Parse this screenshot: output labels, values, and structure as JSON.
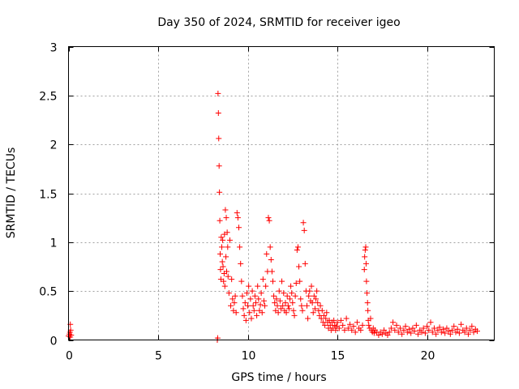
{
  "chart_data": {
    "type": "scatter",
    "title": "Day 350 of 2024, SRMTID for receiver igeo",
    "xlabel": "GPS time / hours",
    "ylabel": "SRMTID / TECUs",
    "xlim": [
      0,
      23.75
    ],
    "ylim": [
      0,
      3
    ],
    "grid": true,
    "x_ticks": [
      0,
      5,
      10,
      15,
      20
    ],
    "y_ticks": [
      0,
      0.5,
      1,
      1.5,
      2,
      2.5,
      3
    ],
    "x_tick_labels": [
      "0",
      "5",
      "10",
      "15",
      "20"
    ],
    "y_tick_labels": [
      "0",
      "0.5",
      "1",
      "1.5",
      "2",
      "2.5",
      "3"
    ],
    "marker": "+",
    "color": "#ff0000",
    "series": [
      {
        "name": "igeo",
        "x": [
          0.0,
          0.05,
          0.1,
          0.12,
          0.15,
          0.1,
          0.08,
          8.3,
          8.32,
          8.34,
          8.36,
          8.38,
          8.4,
          8.42,
          8.44,
          8.46,
          8.48,
          8.5,
          8.52,
          8.55,
          8.58,
          8.6,
          8.62,
          8.65,
          8.68,
          8.7,
          8.72,
          8.75,
          8.78,
          8.8,
          8.82,
          8.85,
          8.88,
          8.9,
          8.95,
          9.0,
          9.05,
          9.1,
          9.15,
          9.2,
          9.25,
          9.3,
          9.35,
          9.4,
          9.45,
          9.5,
          9.55,
          9.6,
          9.65,
          9.7,
          9.75,
          9.8,
          9.85,
          9.9,
          9.95,
          10.0,
          10.05,
          10.1,
          10.15,
          10.2,
          10.25,
          10.3,
          10.35,
          10.4,
          10.45,
          10.5,
          10.55,
          10.6,
          10.65,
          10.7,
          10.75,
          10.8,
          10.85,
          10.9,
          10.95,
          11.0,
          11.05,
          11.1,
          11.15,
          11.2,
          11.25,
          11.3,
          11.35,
          11.4,
          11.45,
          11.5,
          11.55,
          11.6,
          11.65,
          11.7,
          11.75,
          11.8,
          11.85,
          11.9,
          11.95,
          12.0,
          12.05,
          12.1,
          12.15,
          12.2,
          12.25,
          12.3,
          12.35,
          12.4,
          12.45,
          12.5,
          12.55,
          12.6,
          12.65,
          12.7,
          12.75,
          12.8,
          12.85,
          12.9,
          12.95,
          13.0,
          13.05,
          13.1,
          13.15,
          13.2,
          13.25,
          13.3,
          13.35,
          13.4,
          13.45,
          13.5,
          13.55,
          13.6,
          13.65,
          13.7,
          13.75,
          13.8,
          13.85,
          13.9,
          13.95,
          14.0,
          14.05,
          14.1,
          14.15,
          14.2,
          14.25,
          14.3,
          14.35,
          14.4,
          14.45,
          14.5,
          14.55,
          14.6,
          14.65,
          14.7,
          14.75,
          14.8,
          14.85,
          14.9,
          14.95,
          15.0,
          15.1,
          15.2,
          15.3,
          15.4,
          15.5,
          15.6,
          15.7,
          15.8,
          15.9,
          16.0,
          16.1,
          16.2,
          16.3,
          16.4,
          16.5,
          16.52,
          16.55,
          16.58,
          16.6,
          16.62,
          16.65,
          16.68,
          16.7,
          16.72,
          16.75,
          16.8,
          16.85,
          16.9,
          16.95,
          17.0,
          17.05,
          17.1,
          17.2,
          17.3,
          17.4,
          17.5,
          17.6,
          17.7,
          17.8,
          17.9,
          18.0,
          18.1,
          18.2,
          18.3,
          18.4,
          18.5,
          18.6,
          18.7,
          18.8,
          18.9,
          19.0,
          19.1,
          19.2,
          19.3,
          19.4,
          19.5,
          19.6,
          19.7,
          19.8,
          19.9,
          20.0,
          20.1,
          20.2,
          20.3,
          20.4,
          20.5,
          20.6,
          20.7,
          20.8,
          20.9,
          21.0,
          21.1,
          21.2,
          21.3,
          21.4,
          21.5,
          21.6,
          21.7,
          21.8,
          21.9,
          22.0,
          22.1,
          22.2,
          22.3,
          22.4,
          22.5,
          22.6,
          22.7,
          22.8
        ],
        "y": [
          0.04,
          0.06,
          0.16,
          0.1,
          0.05,
          0.03,
          0.08,
          0.0,
          0.02,
          2.52,
          2.32,
          2.06,
          1.78,
          1.51,
          1.22,
          0.88,
          0.72,
          0.62,
          1.05,
          0.95,
          0.8,
          1.02,
          0.75,
          0.6,
          0.68,
          1.08,
          0.55,
          1.33,
          0.85,
          1.25,
          0.7,
          1.1,
          0.95,
          0.65,
          0.48,
          1.02,
          0.35,
          0.62,
          0.42,
          0.3,
          0.38,
          0.45,
          0.28,
          1.3,
          1.25,
          1.15,
          0.95,
          0.78,
          0.6,
          0.45,
          0.32,
          0.25,
          0.38,
          0.2,
          0.48,
          0.35,
          0.55,
          0.28,
          0.42,
          0.22,
          0.5,
          0.35,
          0.3,
          0.45,
          0.38,
          0.25,
          0.55,
          0.42,
          0.3,
          0.36,
          0.48,
          0.28,
          0.62,
          0.4,
          0.35,
          0.55,
          0.88,
          0.7,
          1.25,
          1.22,
          0.95,
          0.82,
          0.7,
          0.6,
          0.45,
          0.38,
          0.3,
          0.42,
          0.35,
          0.28,
          0.5,
          0.4,
          0.32,
          0.6,
          0.35,
          0.48,
          0.3,
          0.38,
          0.28,
          0.45,
          0.35,
          0.32,
          0.42,
          0.55,
          0.48,
          0.38,
          0.3,
          0.25,
          0.45,
          0.58,
          0.92,
          0.95,
          0.75,
          0.6,
          0.42,
          0.35,
          0.3,
          1.2,
          1.12,
          0.78,
          0.5,
          0.35,
          0.22,
          0.45,
          0.5,
          0.4,
          0.55,
          0.38,
          0.28,
          0.45,
          0.32,
          0.42,
          0.5,
          0.38,
          0.3,
          0.25,
          0.35,
          0.22,
          0.3,
          0.18,
          0.25,
          0.15,
          0.22,
          0.28,
          0.18,
          0.12,
          0.2,
          0.15,
          0.1,
          0.18,
          0.12,
          0.2,
          0.15,
          0.1,
          0.14,
          0.18,
          0.12,
          0.2,
          0.15,
          0.1,
          0.22,
          0.12,
          0.16,
          0.1,
          0.14,
          0.08,
          0.18,
          0.12,
          0.1,
          0.15,
          0.72,
          0.85,
          0.92,
          0.95,
          0.78,
          0.6,
          0.48,
          0.38,
          0.3,
          0.2,
          0.15,
          0.12,
          0.22,
          0.1,
          0.08,
          0.12,
          0.07,
          0.1,
          0.08,
          0.05,
          0.08,
          0.06,
          0.1,
          0.07,
          0.05,
          0.08,
          0.12,
          0.18,
          0.1,
          0.15,
          0.08,
          0.12,
          0.06,
          0.1,
          0.14,
          0.08,
          0.11,
          0.07,
          0.12,
          0.09,
          0.15,
          0.06,
          0.1,
          0.08,
          0.12,
          0.07,
          0.14,
          0.1,
          0.18,
          0.08,
          0.12,
          0.06,
          0.1,
          0.13,
          0.08,
          0.11,
          0.07,
          0.12,
          0.09,
          0.06,
          0.1,
          0.14,
          0.08,
          0.11,
          0.07,
          0.16,
          0.1,
          0.08,
          0.12,
          0.06,
          0.1,
          0.14,
          0.08,
          0.11,
          0.09
        ]
      }
    ]
  }
}
